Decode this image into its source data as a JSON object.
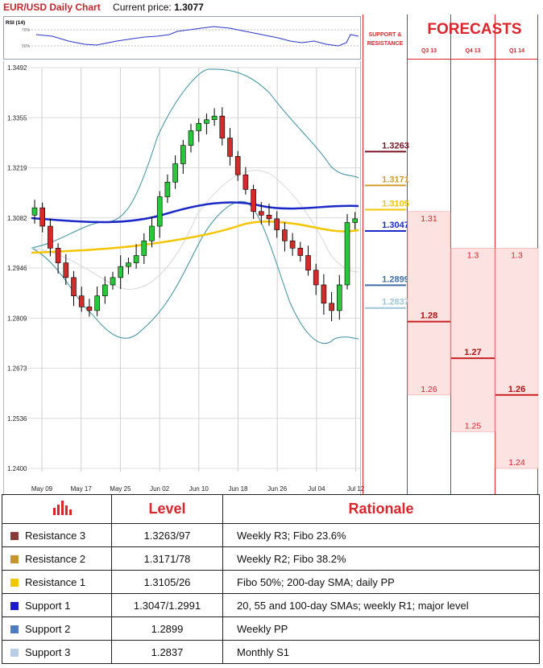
{
  "header": {
    "title": "EUR/USD Daily Chart",
    "price_label": "Current price:",
    "price_value": "1.3077"
  },
  "rsi": {
    "label": "RSI (14)",
    "levels": [
      "70%",
      "50%"
    ]
  },
  "chart_data": {
    "type": "candlestick",
    "yticks": [
      "1.3492",
      "1.3355",
      "1.3219",
      "1.3082",
      "1.2946",
      "1.2809",
      "1.2673",
      "1.2536",
      "1.2400"
    ],
    "xticks": [
      "May 09",
      "May 17",
      "May 25",
      "Jun 02",
      "Jun 10",
      "Jun 18",
      "Jun 26",
      "Jul 04",
      "Jul 12"
    ],
    "ylim": [
      1.24,
      1.3492
    ],
    "sr_levels": [
      {
        "label": "1.3263",
        "value": 1.3263,
        "color": "#7b1526"
      },
      {
        "label": "1.3171",
        "value": 1.3171,
        "color": "#d29b2a"
      },
      {
        "label": "1.3105",
        "value": 1.3105,
        "color": "#f5c500"
      },
      {
        "label": "1.3047",
        "value": 1.3047,
        "color": "#1a28c8"
      },
      {
        "label": "1.2899",
        "value": 1.2899,
        "color": "#3f6ea6"
      },
      {
        "label": "1.2837",
        "value": 1.2837,
        "color": "#9ec6d8"
      }
    ]
  },
  "forecasts": {
    "title": "FORECASTS",
    "sr_title": "SUPPORT & RESISTANCE",
    "quarters": [
      {
        "label": "Q3 13",
        "high": "1.31",
        "high_value": 1.31,
        "mid": "1.28",
        "mid_value": 1.28,
        "low": "1.26",
        "low_value": 1.26
      },
      {
        "label": "Q4 13",
        "high": "1.3",
        "high_value": 1.3,
        "mid": "1.27",
        "mid_value": 1.27,
        "low": "1.25",
        "low_value": 1.25
      },
      {
        "label": "Q1 14",
        "high": "1.3",
        "high_value": 1.3,
        "mid": "1.26",
        "mid_value": 1.26,
        "low": "1.24",
        "low_value": 1.24
      }
    ]
  },
  "table": {
    "headers": {
      "level": "Level",
      "rationale": "Rationale"
    },
    "rows": [
      {
        "name": "Resistance 3",
        "level": "1.3263/97",
        "rationale": "Weekly R3; Fibo 23.6%",
        "color": "#8b3a3a"
      },
      {
        "name": "Resistance 2",
        "level": "1.3171/78",
        "rationale": "Weekly R2; Fibo 38.2%",
        "color": "#c8952a"
      },
      {
        "name": "Resistance 1",
        "level": "1.3105/26",
        "rationale": "Fibo 50%; 200-day SMA; daily PP",
        "color": "#f5c500"
      },
      {
        "name": "Support 1",
        "level": "1.3047/1.2991",
        "rationale": "20, 55 and 100-day SMAs; weekly R1; major level",
        "color": "#1a1acc"
      },
      {
        "name": "Support 2",
        "level": "1.2899",
        "rationale": "Weekly PP",
        "color": "#4f7bc4"
      },
      {
        "name": "Support 3",
        "level": "1.2837",
        "rationale": "Monthly S1",
        "color": "#b9cde6"
      }
    ]
  }
}
